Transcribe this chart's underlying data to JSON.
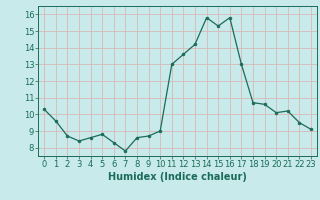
{
  "x": [
    0,
    1,
    2,
    3,
    4,
    5,
    6,
    7,
    8,
    9,
    10,
    11,
    12,
    13,
    14,
    15,
    16,
    17,
    18,
    19,
    20,
    21,
    22,
    23
  ],
  "y": [
    10.3,
    9.6,
    8.7,
    8.4,
    8.6,
    8.8,
    8.3,
    7.8,
    8.6,
    8.7,
    9.0,
    13.0,
    13.6,
    14.2,
    15.8,
    15.3,
    15.8,
    13.0,
    10.7,
    10.6,
    10.1,
    10.2,
    9.5,
    9.1
  ],
  "xlabel": "Humidex (Indice chaleur)",
  "ylim": [
    7.5,
    16.5
  ],
  "xlim": [
    -0.5,
    23.5
  ],
  "yticks": [
    8,
    9,
    10,
    11,
    12,
    13,
    14,
    15,
    16
  ],
  "xticks": [
    0,
    1,
    2,
    3,
    4,
    5,
    6,
    7,
    8,
    9,
    10,
    11,
    12,
    13,
    14,
    15,
    16,
    17,
    18,
    19,
    20,
    21,
    22,
    23
  ],
  "line_color": "#1a6b5a",
  "marker_color": "#1a6b5a",
  "bg_color": "#c8eaea",
  "grid_color": "#d8b8b8",
  "tick_color": "#1a6b5a",
  "label_color": "#1a6b5a",
  "xlabel_fontsize": 7,
  "tick_fontsize": 6
}
